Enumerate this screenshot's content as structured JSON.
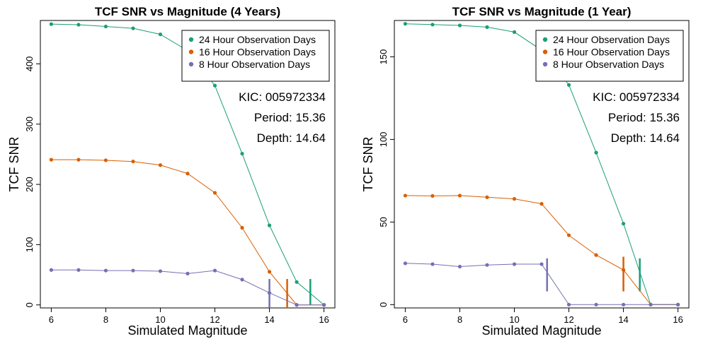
{
  "chart_data": [
    {
      "type": "line",
      "title": "TCF SNR vs Magnitude (4 Years)",
      "xlabel": "Simulated Magnitude",
      "ylabel": "TCF SNR",
      "xlim": [
        5.6,
        16.4
      ],
      "ylim": [
        -5,
        472
      ],
      "xticks": [
        6,
        8,
        10,
        12,
        14,
        16
      ],
      "yticks": [
        0,
        100,
        200,
        300,
        400
      ],
      "x": [
        6,
        7,
        8,
        9,
        10,
        11,
        12,
        13,
        14,
        15,
        16
      ],
      "series": [
        {
          "name": "24 Hour Observation Days",
          "color": "#1b9e77",
          "values": [
            466,
            465,
            462,
            459,
            449,
            422,
            364,
            251,
            132,
            38,
            0
          ],
          "threshold_x": 15.5,
          "threshold_y": [
            0,
            43
          ]
        },
        {
          "name": "16 Hour Observation Days",
          "color": "#d95f02",
          "values": [
            241,
            241,
            240,
            238,
            232,
            218,
            186,
            128,
            55,
            0,
            0
          ],
          "threshold_x": 14.65,
          "threshold_y": [
            -5,
            43
          ]
        },
        {
          "name": "8 Hour Observation Days",
          "color": "#7570b3",
          "values": [
            58,
            58,
            57,
            57,
            56,
            52,
            57,
            42,
            20,
            0,
            0
          ],
          "threshold_x": 14.0,
          "threshold_y": [
            -5,
            43
          ]
        }
      ],
      "legend": "top-right",
      "annotations": [
        "KIC: 005972334",
        "Period: 15.36",
        "Depth: 14.64"
      ]
    },
    {
      "type": "line",
      "title": "TCF SNR vs Magnitude (1 Year)",
      "xlabel": "Simulated Magnitude",
      "ylabel": "TCF SNR",
      "xlim": [
        5.6,
        16.4
      ],
      "ylim": [
        -2,
        172
      ],
      "xticks": [
        6,
        8,
        10,
        12,
        14,
        16
      ],
      "yticks": [
        0,
        50,
        100,
        150
      ],
      "x": [
        6,
        7,
        8,
        9,
        10,
        11,
        12,
        13,
        14,
        15,
        16
      ],
      "series": [
        {
          "name": "24 Hour Observation Days",
          "color": "#1b9e77",
          "values": [
            170,
            169.5,
            169,
            168,
            165,
            154,
            133,
            92,
            49,
            0,
            0
          ],
          "threshold_x": 14.6,
          "threshold_y": [
            8,
            28
          ]
        },
        {
          "name": "16 Hour Observation Days",
          "color": "#d95f02",
          "values": [
            66,
            65.8,
            66,
            65,
            64,
            61,
            42,
            30,
            21,
            0,
            0
          ],
          "threshold_x": 14.0,
          "threshold_y": [
            8,
            29
          ]
        },
        {
          "name": "8 Hour Observation Days",
          "color": "#7570b3",
          "values": [
            25,
            24.5,
            23,
            24,
            24.5,
            24.5,
            0,
            0,
            0,
            0,
            0
          ],
          "threshold_x": 11.2,
          "threshold_y": [
            8,
            28
          ]
        }
      ],
      "legend": "top-right",
      "annotations": [
        "KIC: 005972334",
        "Period: 15.36",
        "Depth: 14.64"
      ]
    }
  ]
}
